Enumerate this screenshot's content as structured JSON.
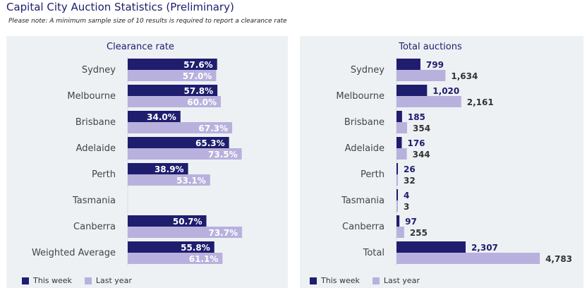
{
  "page": {
    "title": "Capital City Auction Statistics (Preliminary)",
    "note": "Please note: A minimum sample size of 10 results is required to report a clearance rate"
  },
  "colors": {
    "this_week": "#1e1d6e",
    "last_year": "#b8b1dd",
    "panel_bg": "#eef1f4",
    "label": "#444444"
  },
  "legend": {
    "this_week": "This week",
    "last_year": "Last year"
  },
  "chart_data": [
    {
      "type": "bar",
      "orientation": "horizontal",
      "title": "Clearance rate",
      "categories": [
        "Sydney",
        "Melbourne",
        "Brisbane",
        "Adelaide",
        "Perth",
        "Tasmania",
        "Canberra",
        "Weighted Average"
      ],
      "series": [
        {
          "name": "This week",
          "values": [
            57.6,
            57.8,
            34.0,
            65.3,
            38.9,
            null,
            50.7,
            55.8
          ],
          "labels": [
            "57.6%",
            "57.8%",
            "34.0%",
            "65.3%",
            "38.9%",
            "",
            "50.7%",
            "55.8%"
          ]
        },
        {
          "name": "Last year",
          "values": [
            57.0,
            60.0,
            67.3,
            73.5,
            53.1,
            null,
            73.7,
            61.1
          ],
          "labels": [
            "57.0%",
            "60.0%",
            "67.3%",
            "73.5%",
            "53.1%",
            "",
            "73.7%",
            "61.1%"
          ]
        }
      ],
      "xlim": [
        0,
        100
      ],
      "label_position": "inside-end",
      "legend_position": "bottom-left"
    },
    {
      "type": "bar",
      "orientation": "horizontal",
      "title": "Total auctions",
      "categories": [
        "Sydney",
        "Melbourne",
        "Brisbane",
        "Adelaide",
        "Perth",
        "Tasmania",
        "Canberra",
        "Total"
      ],
      "series": [
        {
          "name": "This week",
          "values": [
            799,
            1020,
            185,
            176,
            26,
            4,
            97,
            2307
          ],
          "labels": [
            "799",
            "1,020",
            "185",
            "176",
            "26",
            "4",
            "97",
            "2,307"
          ]
        },
        {
          "name": "Last year",
          "values": [
            1634,
            2161,
            354,
            344,
            32,
            3,
            255,
            4783
          ],
          "labels": [
            "1,634",
            "2,161",
            "354",
            "344",
            "32",
            "3",
            "255",
            "4,783"
          ]
        }
      ],
      "xlim": [
        0,
        6500
      ],
      "label_position": "outside-end",
      "legend_position": "bottom-left"
    }
  ]
}
